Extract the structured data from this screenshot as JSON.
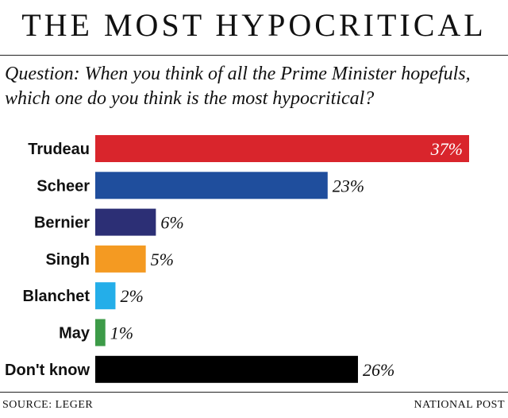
{
  "title": "THE MOST HYPOCRITICAL",
  "question": "Question: When you think of all the Prime Minister hopefuls, which one do you think is the most hypocritical?",
  "source": "SOURCE: LEGER",
  "publisher": "NATIONAL POST",
  "chart_data": {
    "type": "bar",
    "orientation": "horizontal",
    "title": "THE MOST HYPOCRITICAL",
    "categories": [
      "Trudeau",
      "Scheer",
      "Bernier",
      "Singh",
      "Blanchet",
      "May",
      "Don't know"
    ],
    "values": [
      37,
      23,
      6,
      5,
      2,
      1,
      26
    ],
    "value_labels": [
      "37%",
      "23%",
      "6%",
      "5%",
      "2%",
      "1%",
      "26%"
    ],
    "colors": [
      "#d9252c",
      "#1f4e9d",
      "#2c2f75",
      "#f49a22",
      "#24aee9",
      "#3d9b48",
      "#000000"
    ],
    "xlabel": "",
    "ylabel": "",
    "xlim": [
      0,
      37
    ],
    "grid": false,
    "legend": "none"
  }
}
